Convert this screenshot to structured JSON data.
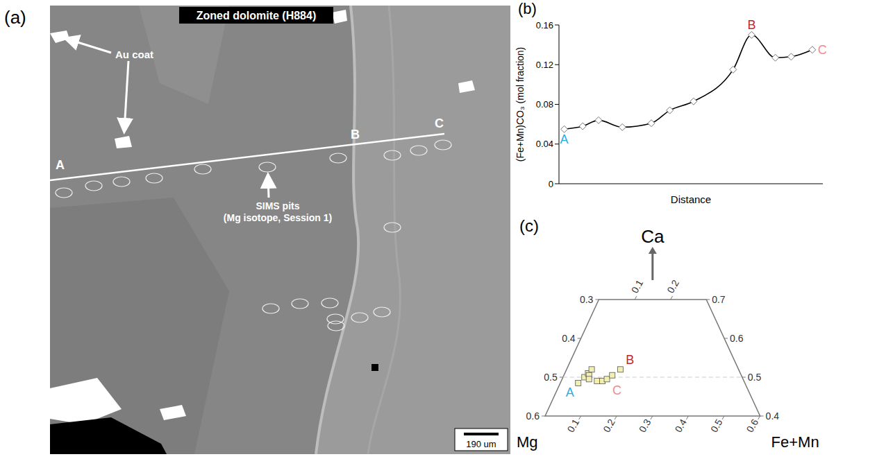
{
  "panel_a": {
    "label": "(a)",
    "type": "image",
    "title": "Zoned dolomite (H884)",
    "au_coat": "Au coat",
    "sims": [
      "SIMS pits",
      "(Mg isotope, Session 1)"
    ],
    "scale_bar": "190 um",
    "profile_points": [
      "A",
      "B",
      "C"
    ]
  },
  "chart_data": [
    {
      "panel": "(b)",
      "type": "line",
      "ylabel": "(Fe+Mn)CO₃ (mol fraction)",
      "xlabel": "Distance",
      "x": [
        2,
        9,
        15,
        24,
        35,
        42,
        51,
        66,
        73,
        82,
        88,
        96
      ],
      "values": [
        0.055,
        0.058,
        0.064,
        0.057,
        0.061,
        0.074,
        0.083,
        0.115,
        0.15,
        0.127,
        0.128,
        0.135
      ],
      "color": "#000000",
      "marker": "diamond",
      "line_style": "solid",
      "xlim": [
        0,
        100
      ],
      "xticks": [],
      "ylim": [
        0,
        0.16
      ],
      "yticks": [
        0,
        0.04,
        0.08,
        0.12,
        0.16
      ],
      "tick_labels": "y",
      "grid": false,
      "annotations": [
        {
          "text": "A",
          "x": 2,
          "y": 0.055,
          "color": "#29abe2"
        },
        {
          "text": "B",
          "x": 73,
          "y": 0.15,
          "color": "#c1272d"
        },
        {
          "text": "C",
          "x": 96,
          "y": 0.135,
          "color": "#f08c8c"
        }
      ]
    },
    {
      "panel": "(c)",
      "type": "ternary",
      "axes": {
        "left": "Mg",
        "top": "Ca",
        "right": "Fe+Mn"
      },
      "ca_lim": [
        0.4,
        0.7
      ],
      "mg_ticks": [
        0.3,
        0.4,
        0.5,
        0.6
      ],
      "ca_ticks": [
        0.7,
        0.6,
        0.5,
        0.4
      ],
      "fe_mn_ticks": [
        0.1,
        0.2,
        0.3,
        0.4,
        0.5,
        0.6
      ],
      "fe_mn_top_ticks": [
        0.1,
        0.2
      ],
      "reference_line": {
        "ca": 0.5
      },
      "fe_mn": [
        0.05,
        0.06,
        0.065,
        0.07,
        0.07,
        0.075,
        0.1,
        0.115,
        0.125,
        0.135,
        0.15
      ],
      "ca": [
        0.485,
        0.5,
        0.51,
        0.52,
        0.505,
        0.495,
        0.49,
        0.49,
        0.495,
        0.505,
        0.52
      ],
      "color": "#f3efb2",
      "marker": "square",
      "annotations": [
        {
          "text": "A",
          "index": 0,
          "color": "#29abe2"
        },
        {
          "text": "B",
          "index": 10,
          "color": "#c1272d"
        },
        {
          "text": "C",
          "index": 8,
          "color": "#f08c8c"
        }
      ]
    }
  ]
}
